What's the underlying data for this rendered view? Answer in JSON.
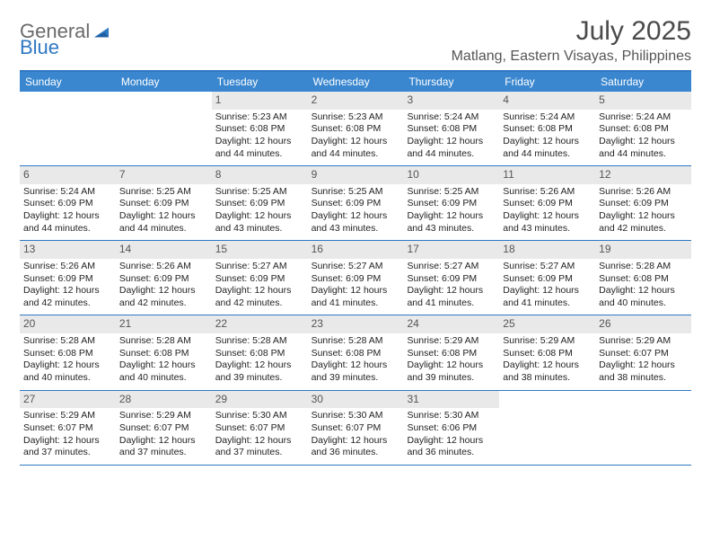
{
  "logo": {
    "text1": "General",
    "text2": "Blue"
  },
  "title": "July 2025",
  "location": "Matlang, Eastern Visayas, Philippines",
  "colors": {
    "header_bg": "#3a87cf",
    "border": "#2f78c2",
    "daynum_bg": "#e9e9e9",
    "text": "#222222"
  },
  "daysOfWeek": [
    "Sunday",
    "Monday",
    "Tuesday",
    "Wednesday",
    "Thursday",
    "Friday",
    "Saturday"
  ],
  "weeks": [
    [
      {
        "empty": true
      },
      {
        "empty": true
      },
      {
        "day": "1",
        "sunrise": "Sunrise: 5:23 AM",
        "sunset": "Sunset: 6:08 PM",
        "daylight": "Daylight: 12 hours and 44 minutes."
      },
      {
        "day": "2",
        "sunrise": "Sunrise: 5:23 AM",
        "sunset": "Sunset: 6:08 PM",
        "daylight": "Daylight: 12 hours and 44 minutes."
      },
      {
        "day": "3",
        "sunrise": "Sunrise: 5:24 AM",
        "sunset": "Sunset: 6:08 PM",
        "daylight": "Daylight: 12 hours and 44 minutes."
      },
      {
        "day": "4",
        "sunrise": "Sunrise: 5:24 AM",
        "sunset": "Sunset: 6:08 PM",
        "daylight": "Daylight: 12 hours and 44 minutes."
      },
      {
        "day": "5",
        "sunrise": "Sunrise: 5:24 AM",
        "sunset": "Sunset: 6:08 PM",
        "daylight": "Daylight: 12 hours and 44 minutes."
      }
    ],
    [
      {
        "day": "6",
        "sunrise": "Sunrise: 5:24 AM",
        "sunset": "Sunset: 6:09 PM",
        "daylight": "Daylight: 12 hours and 44 minutes."
      },
      {
        "day": "7",
        "sunrise": "Sunrise: 5:25 AM",
        "sunset": "Sunset: 6:09 PM",
        "daylight": "Daylight: 12 hours and 44 minutes."
      },
      {
        "day": "8",
        "sunrise": "Sunrise: 5:25 AM",
        "sunset": "Sunset: 6:09 PM",
        "daylight": "Daylight: 12 hours and 43 minutes."
      },
      {
        "day": "9",
        "sunrise": "Sunrise: 5:25 AM",
        "sunset": "Sunset: 6:09 PM",
        "daylight": "Daylight: 12 hours and 43 minutes."
      },
      {
        "day": "10",
        "sunrise": "Sunrise: 5:25 AM",
        "sunset": "Sunset: 6:09 PM",
        "daylight": "Daylight: 12 hours and 43 minutes."
      },
      {
        "day": "11",
        "sunrise": "Sunrise: 5:26 AM",
        "sunset": "Sunset: 6:09 PM",
        "daylight": "Daylight: 12 hours and 43 minutes."
      },
      {
        "day": "12",
        "sunrise": "Sunrise: 5:26 AM",
        "sunset": "Sunset: 6:09 PM",
        "daylight": "Daylight: 12 hours and 42 minutes."
      }
    ],
    [
      {
        "day": "13",
        "sunrise": "Sunrise: 5:26 AM",
        "sunset": "Sunset: 6:09 PM",
        "daylight": "Daylight: 12 hours and 42 minutes."
      },
      {
        "day": "14",
        "sunrise": "Sunrise: 5:26 AM",
        "sunset": "Sunset: 6:09 PM",
        "daylight": "Daylight: 12 hours and 42 minutes."
      },
      {
        "day": "15",
        "sunrise": "Sunrise: 5:27 AM",
        "sunset": "Sunset: 6:09 PM",
        "daylight": "Daylight: 12 hours and 42 minutes."
      },
      {
        "day": "16",
        "sunrise": "Sunrise: 5:27 AM",
        "sunset": "Sunset: 6:09 PM",
        "daylight": "Daylight: 12 hours and 41 minutes."
      },
      {
        "day": "17",
        "sunrise": "Sunrise: 5:27 AM",
        "sunset": "Sunset: 6:09 PM",
        "daylight": "Daylight: 12 hours and 41 minutes."
      },
      {
        "day": "18",
        "sunrise": "Sunrise: 5:27 AM",
        "sunset": "Sunset: 6:09 PM",
        "daylight": "Daylight: 12 hours and 41 minutes."
      },
      {
        "day": "19",
        "sunrise": "Sunrise: 5:28 AM",
        "sunset": "Sunset: 6:08 PM",
        "daylight": "Daylight: 12 hours and 40 minutes."
      }
    ],
    [
      {
        "day": "20",
        "sunrise": "Sunrise: 5:28 AM",
        "sunset": "Sunset: 6:08 PM",
        "daylight": "Daylight: 12 hours and 40 minutes."
      },
      {
        "day": "21",
        "sunrise": "Sunrise: 5:28 AM",
        "sunset": "Sunset: 6:08 PM",
        "daylight": "Daylight: 12 hours and 40 minutes."
      },
      {
        "day": "22",
        "sunrise": "Sunrise: 5:28 AM",
        "sunset": "Sunset: 6:08 PM",
        "daylight": "Daylight: 12 hours and 39 minutes."
      },
      {
        "day": "23",
        "sunrise": "Sunrise: 5:28 AM",
        "sunset": "Sunset: 6:08 PM",
        "daylight": "Daylight: 12 hours and 39 minutes."
      },
      {
        "day": "24",
        "sunrise": "Sunrise: 5:29 AM",
        "sunset": "Sunset: 6:08 PM",
        "daylight": "Daylight: 12 hours and 39 minutes."
      },
      {
        "day": "25",
        "sunrise": "Sunrise: 5:29 AM",
        "sunset": "Sunset: 6:08 PM",
        "daylight": "Daylight: 12 hours and 38 minutes."
      },
      {
        "day": "26",
        "sunrise": "Sunrise: 5:29 AM",
        "sunset": "Sunset: 6:07 PM",
        "daylight": "Daylight: 12 hours and 38 minutes."
      }
    ],
    [
      {
        "day": "27",
        "sunrise": "Sunrise: 5:29 AM",
        "sunset": "Sunset: 6:07 PM",
        "daylight": "Daylight: 12 hours and 37 minutes."
      },
      {
        "day": "28",
        "sunrise": "Sunrise: 5:29 AM",
        "sunset": "Sunset: 6:07 PM",
        "daylight": "Daylight: 12 hours and 37 minutes."
      },
      {
        "day": "29",
        "sunrise": "Sunrise: 5:30 AM",
        "sunset": "Sunset: 6:07 PM",
        "daylight": "Daylight: 12 hours and 37 minutes."
      },
      {
        "day": "30",
        "sunrise": "Sunrise: 5:30 AM",
        "sunset": "Sunset: 6:07 PM",
        "daylight": "Daylight: 12 hours and 36 minutes."
      },
      {
        "day": "31",
        "sunrise": "Sunrise: 5:30 AM",
        "sunset": "Sunset: 6:06 PM",
        "daylight": "Daylight: 12 hours and 36 minutes."
      },
      {
        "empty": true
      },
      {
        "empty": true
      }
    ]
  ]
}
